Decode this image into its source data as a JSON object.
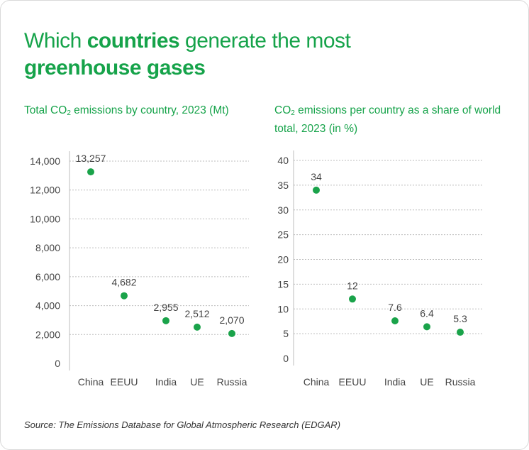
{
  "title": {
    "part1": "Which ",
    "bold1": "countries",
    "part2": " generate the most",
    "bold2": "greenhouse gases"
  },
  "source": "Source: The Emissions Database for Global Atmospheric Research (EDGAR)",
  "chart_data": [
    {
      "type": "scatter",
      "title": "Total CO₂ emissions by country, 2023 (Mt)",
      "title_parts": {
        "before": "Total CO",
        "sub": "2",
        "after": " emissions by country, 2023 (Mt)"
      },
      "categories": [
        "China",
        "EEUU",
        "India",
        "UE",
        "Russia"
      ],
      "values": [
        13257,
        4682,
        2955,
        2512,
        2070
      ],
      "data_labels": [
        "13,257",
        "4,682",
        "2,955",
        "2,512",
        "2,070"
      ],
      "ylim": [
        0,
        14000
      ],
      "yticks": [
        0,
        2000,
        4000,
        6000,
        8000,
        10000,
        12000,
        14000
      ],
      "ytick_labels": [
        "0",
        "2,000",
        "4,000",
        "6,000",
        "8,000",
        "10,000",
        "12,000",
        "14,000"
      ],
      "grid": true,
      "color": "#1aa34a"
    },
    {
      "type": "scatter",
      "title": "CO₂ emissions per country as a share of world total, 2023 (in %)",
      "title_parts": {
        "before": "CO",
        "sub": "2",
        "after": " emissions per country as a share of world total, 2023 (in %)"
      },
      "categories": [
        "China",
        "EEUU",
        "India",
        "UE",
        "Russia"
      ],
      "values": [
        34,
        12,
        7.6,
        6.4,
        5.3
      ],
      "data_labels": [
        "34",
        "12",
        "7.6",
        "6.4",
        "5.3"
      ],
      "ylim": [
        0,
        40
      ],
      "yticks": [
        0,
        5,
        10,
        15,
        20,
        25,
        30,
        35,
        40
      ],
      "ytick_labels": [
        "0",
        "5",
        "10",
        "15",
        "20",
        "25",
        "30",
        "35",
        "40"
      ],
      "grid": true,
      "color": "#1aa34a"
    }
  ]
}
